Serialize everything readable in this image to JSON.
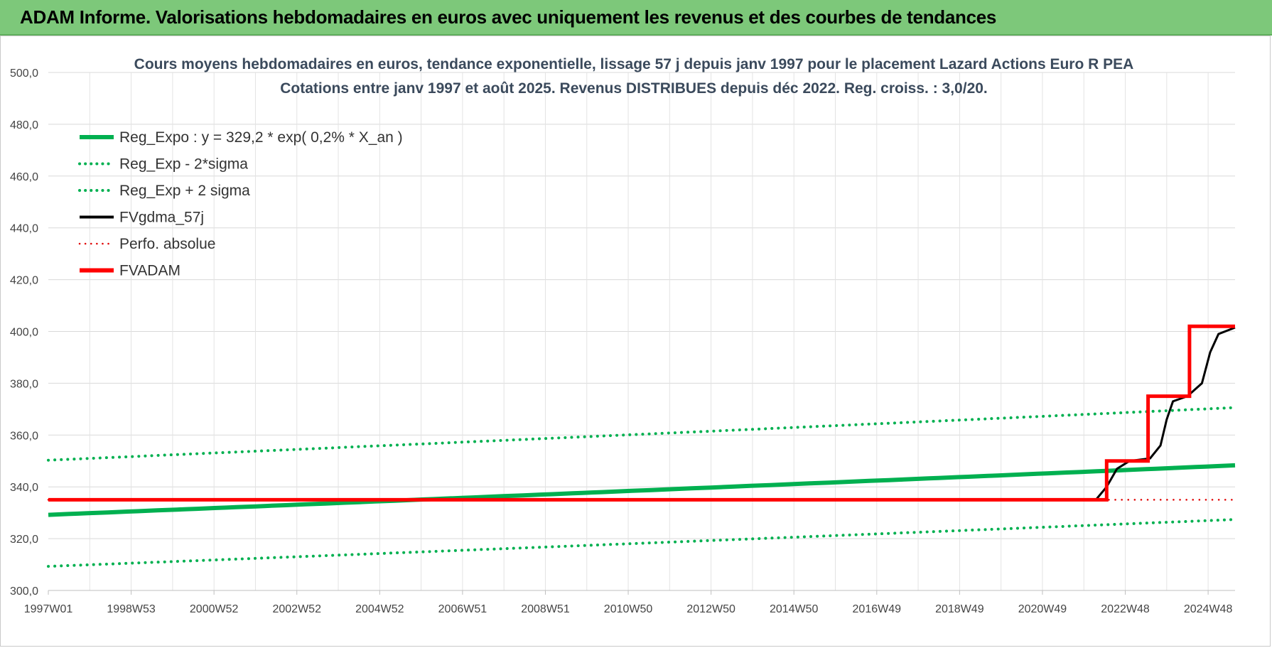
{
  "banner": {
    "title": "ADAM Informe. Valorisations hebdomadaires en euros avec uniquement les revenus et des courbes de tendances"
  },
  "chart_data": {
    "type": "line",
    "title": "Cours moyens hebdomadaires en euros, tendance exponentielle, lissage 57 j depuis janv 1997 pour le placement Lazard Actions Euro R PEA",
    "subtitle": "Cotations entre janv 1997 et août 2025. Revenus DISTRIBUES depuis déc 2022. Reg. croiss. : 3,0/20.",
    "xlabel": "",
    "ylabel": "",
    "x_range": [
      1997.0,
      2025.65
    ],
    "ylim": [
      300,
      500
    ],
    "y_ticks": [
      "300,0",
      "320,0",
      "340,0",
      "360,0",
      "380,0",
      "400,0",
      "420,0",
      "440,0",
      "460,0",
      "480,0",
      "500,0"
    ],
    "x_ticks": [
      {
        "label": "1997W01",
        "x": 1997.0
      },
      {
        "label": "1998W53",
        "x": 1999.0
      },
      {
        "label": "2000W52",
        "x": 2001.0
      },
      {
        "label": "2002W52",
        "x": 2003.0
      },
      {
        "label": "2004W52",
        "x": 2005.0
      },
      {
        "label": "2006W51",
        "x": 2007.0
      },
      {
        "label": "2008W51",
        "x": 2009.0
      },
      {
        "label": "2010W50",
        "x": 2011.0
      },
      {
        "label": "2012W50",
        "x": 2013.0
      },
      {
        "label": "2014W50",
        "x": 2015.0
      },
      {
        "label": "2016W49",
        "x": 2017.0
      },
      {
        "label": "2018W49",
        "x": 2019.0
      },
      {
        "label": "2020W49",
        "x": 2021.0
      },
      {
        "label": "2022W48",
        "x": 2023.0
      },
      {
        "label": "2024W48",
        "x": 2025.0
      }
    ],
    "grid": true,
    "legend_position": "top-left",
    "series": [
      {
        "name": "Reg_Expo : y = 329,2 * exp( 0,2% *  X_an )",
        "color": "#00b050",
        "style": "solid",
        "points": [
          [
            1997.0,
            329.2
          ],
          [
            2025.65,
            348.3
          ]
        ]
      },
      {
        "name": "Reg_Exp - 2*sigma",
        "color": "#00b050",
        "style": "dotted",
        "points": [
          [
            1997.0,
            309.3
          ],
          [
            2025.65,
            327.4
          ]
        ]
      },
      {
        "name": "Reg_Exp + 2 sigma",
        "color": "#00b050",
        "style": "dotted",
        "points": [
          [
            1997.0,
            350.3
          ],
          [
            2025.65,
            370.6
          ]
        ]
      },
      {
        "name": "FVgdma_57j",
        "color": "#000000",
        "style": "solid",
        "points": [
          [
            1997.0,
            335.0
          ],
          [
            2021.5,
            335.0
          ],
          [
            2022.3,
            335.2
          ],
          [
            2022.55,
            340
          ],
          [
            2022.8,
            347
          ],
          [
            2023.1,
            350
          ],
          [
            2023.6,
            351
          ],
          [
            2023.85,
            356
          ],
          [
            2024.0,
            366
          ],
          [
            2024.15,
            373
          ],
          [
            2024.5,
            375
          ],
          [
            2024.85,
            380
          ],
          [
            2025.05,
            392
          ],
          [
            2025.25,
            399
          ],
          [
            2025.65,
            401.5
          ]
        ]
      },
      {
        "name": "Perfo. absolue",
        "color": "#e00000",
        "style": "dotted",
        "points": [
          [
            1997.0,
            335.0
          ],
          [
            2025.65,
            335.0
          ]
        ]
      },
      {
        "name": "FVADAM",
        "color": "#ff0000",
        "style": "step",
        "points": [
          [
            1997.0,
            335.0
          ],
          [
            2022.55,
            335.0
          ],
          [
            2022.55,
            350.0
          ],
          [
            2023.55,
            350.0
          ],
          [
            2023.55,
            375.0
          ],
          [
            2024.55,
            375.0
          ],
          [
            2024.55,
            402.0
          ],
          [
            2025.65,
            402.0
          ]
        ]
      }
    ]
  }
}
